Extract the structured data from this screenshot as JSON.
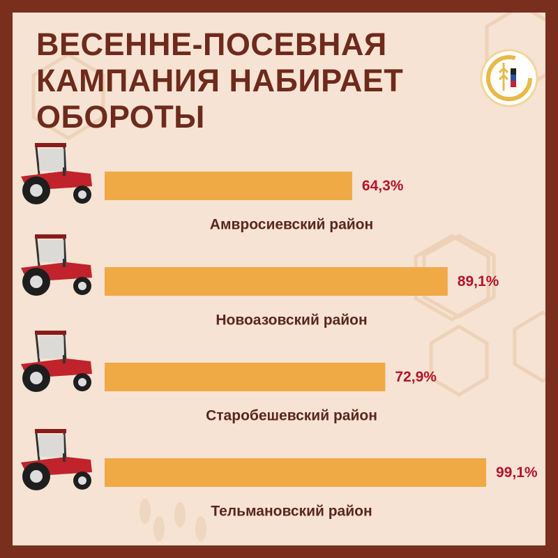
{
  "chart_data": {
    "type": "bar",
    "orientation": "horizontal",
    "title": "ВЕСЕННЕ-ПОСЕВНАЯ КАМПАНИЯ НАБИРАЕТ ОБОРОТЫ",
    "categories": [
      "Амвросиевский район",
      "Новоазовский район",
      "Старобешевский район",
      "Тельмановский район"
    ],
    "values": [
      64.3,
      89.1,
      72.9,
      99.1
    ],
    "value_labels": [
      "64,3%",
      "89,1%",
      "72,9%",
      "99,1%"
    ],
    "color": "#efa945"
  }
}
